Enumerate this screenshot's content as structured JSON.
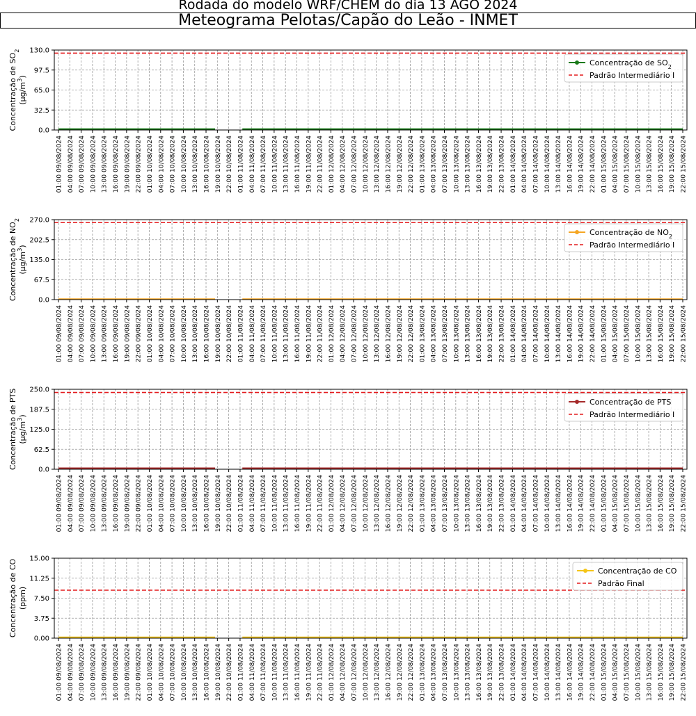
{
  "header": {
    "line1": "Rodada do modelo WRF/CHEM do dia 13 AGO 2024",
    "line2": "Meteograma Pelotas/Capão do Leão - INMET"
  },
  "chart_data": [
    {
      "type": "line",
      "ylabel": "Concentração de SO₂ (μg/m³)",
      "yticks": [
        "0.0",
        "32.5",
        "65.0",
        "97.5",
        "130.0"
      ],
      "ylim": [
        0,
        130
      ],
      "x": [
        "01:00 09/08/2024",
        "04:00 09/08/2024",
        "07:00 09/08/2024",
        "10:00 09/08/2024",
        "13:00 09/08/2024",
        "16:00 09/08/2024",
        "19:00 09/08/2024",
        "22:00 09/08/2024",
        "01:00 10/08/2024",
        "04:00 10/08/2024",
        "07:00 10/08/2024",
        "10:00 10/08/2024",
        "13:00 10/08/2024",
        "16:00 10/08/2024",
        "19:00 10/08/2024",
        "22:00 10/08/2024",
        "01:00 11/08/2024",
        "04:00 11/08/2024",
        "07:00 11/08/2024",
        "10:00 11/08/2024",
        "13:00 11/08/2024",
        "16:00 11/08/2024",
        "19:00 11/08/2024",
        "22:00 11/08/2024",
        "01:00 12/08/2024",
        "04:00 12/08/2024",
        "07:00 12/08/2024",
        "10:00 12/08/2024",
        "13:00 12/08/2024",
        "16:00 12/08/2024",
        "19:00 12/08/2024",
        "22:00 12/08/2024",
        "01:00 13/08/2024",
        "04:00 13/08/2024",
        "07:00 13/08/2024",
        "10:00 13/08/2024",
        "13:00 13/08/2024",
        "16:00 13/08/2024",
        "19:00 13/08/2024",
        "22:00 13/08/2024",
        "01:00 14/08/2024",
        "04:00 14/08/2024",
        "07:00 14/08/2024",
        "10:00 14/08/2024",
        "13:00 14/08/2024",
        "16:00 14/08/2024",
        "19:00 14/08/2024",
        "22:00 14/08/2024",
        "01:00 15/08/2024",
        "04:00 15/08/2024",
        "07:00 15/08/2024",
        "10:00 15/08/2024",
        "13:00 15/08/2024",
        "16:00 15/08/2024",
        "19:00 15/08/2024",
        "22:00 15/08/2024"
      ],
      "series": [
        {
          "name": "Concentração de SO₂",
          "color": "#1a7a1a",
          "value": 1.5,
          "gaps": [
            [
              13.8,
              16.2
            ]
          ]
        },
        {
          "name": "Padrão Intermediário I",
          "color": "#e41a1c",
          "dashed": true,
          "value": 125
        }
      ],
      "legend": "top-right",
      "grid": true
    },
    {
      "type": "line",
      "ylabel": "Concentração de NO₂ (μg/m³)",
      "yticks": [
        "0.0",
        "67.5",
        "135.0",
        "202.5",
        "270.0"
      ],
      "ylim": [
        0,
        270
      ],
      "x": "same as SO₂ panel",
      "series": [
        {
          "name": "Concentração de NO₂",
          "color": "#f5a623",
          "value": 1.5,
          "gaps": [
            [
              13.8,
              16.2
            ]
          ]
        },
        {
          "name": "Padrão Intermediário I",
          "color": "#e41a1c",
          "dashed": true,
          "value": 260
        }
      ],
      "legend": "top-right",
      "grid": true
    },
    {
      "type": "line",
      "ylabel": "Concentração de PTS (μg/m³)",
      "yticks": [
        "0.0",
        "62.5",
        "125.0",
        "187.5",
        "250.0"
      ],
      "ylim": [
        0,
        250
      ],
      "x": "same as SO₂ panel",
      "series": [
        {
          "name": "Concentração de PTS",
          "color": "#a52a2a",
          "value": 3,
          "gaps": [
            [
              13.8,
              16.2
            ]
          ]
        },
        {
          "name": "Padrão Intermediário I",
          "color": "#e41a1c",
          "dashed": true,
          "value": 240
        }
      ],
      "legend": "top-right",
      "grid": true
    },
    {
      "type": "line",
      "ylabel": "Concentração de CO (ppm)",
      "yticks": [
        "0.00",
        "3.75",
        "7.50",
        "11.25",
        "15.00"
      ],
      "ylim": [
        0,
        15
      ],
      "x": "same as SO₂ panel",
      "series": [
        {
          "name": "Concentração de CO",
          "color": "#f5c518",
          "value": 0.15,
          "gaps": [
            [
              13.8,
              16.2
            ]
          ]
        },
        {
          "name": "Padrão Final",
          "color": "#e41a1c",
          "dashed": true,
          "value": 9
        }
      ],
      "legend": "top-right",
      "grid": true
    }
  ]
}
